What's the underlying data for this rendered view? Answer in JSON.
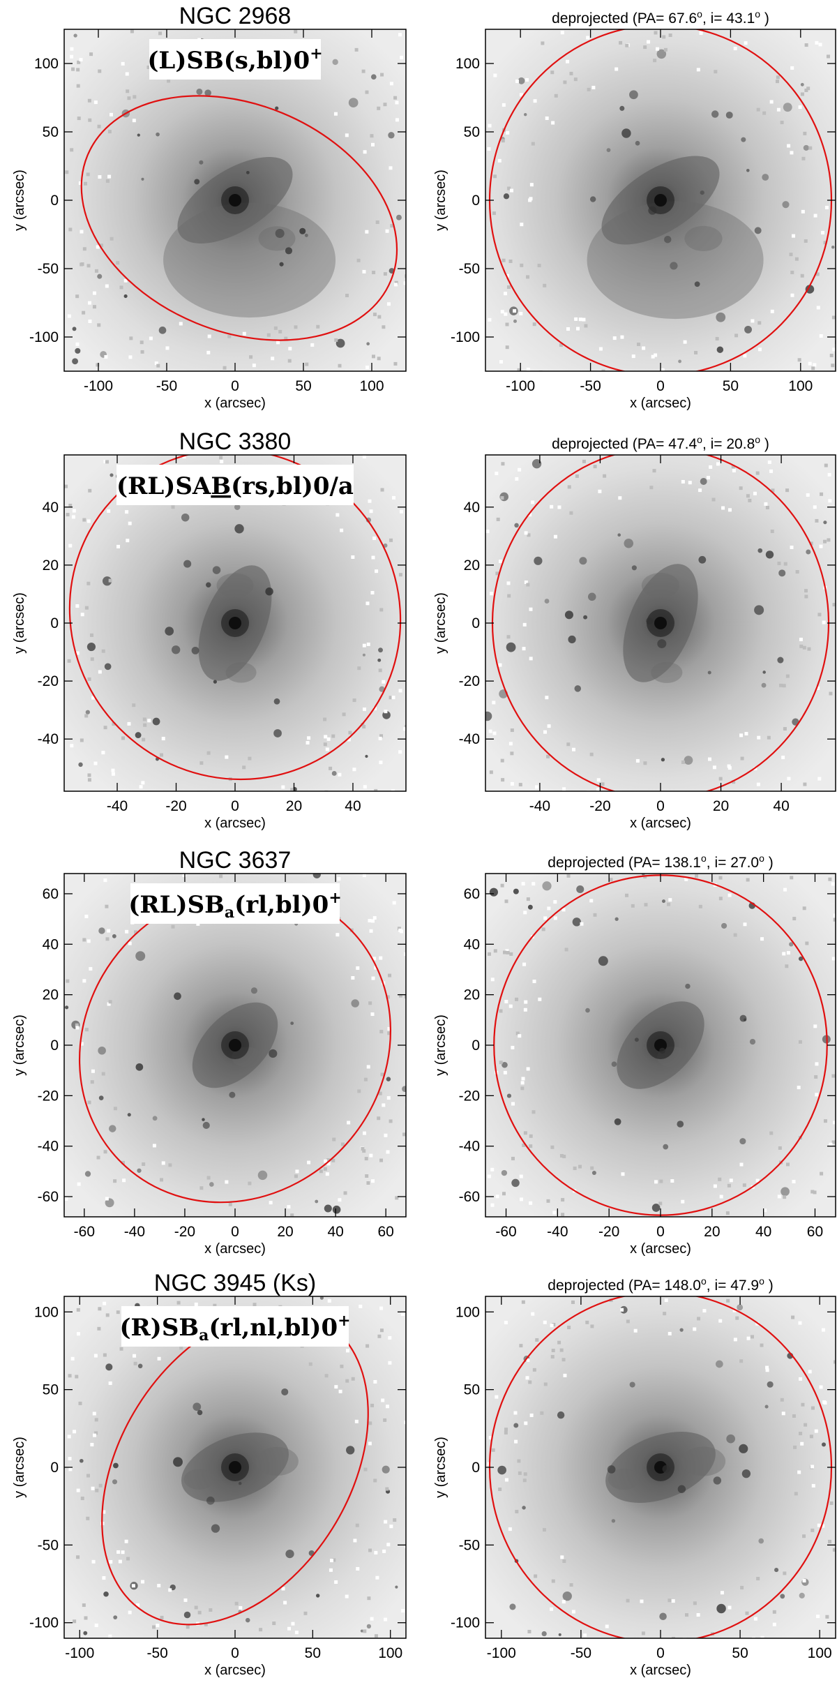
{
  "panels": [
    {
      "title": "NGC 2968",
      "classification": {
        "main": "(L)SB(s,bl)0",
        "sup": "+"
      },
      "xlabel": "x (arcsec)",
      "ylabel": "y (arcsec)",
      "xlim": [
        -125,
        125
      ],
      "ylim": [
        -125,
        125
      ],
      "xticks": [
        "-100",
        "-50",
        "0",
        "50",
        "100"
      ],
      "yticks": [
        "-100",
        "-50",
        "0",
        "50",
        "100"
      ],
      "ellipse": {
        "cx": 3,
        "cy": -13,
        "a": 120,
        "b": 83,
        "pa_deg": 67.6,
        "color": "#e01010"
      }
    },
    {
      "title": "deprojected",
      "annotation": {
        "prefix": "(PA= ",
        "pa": "67.6",
        "sep": ", i= ",
        "inc": "43.1",
        "suffix": " )",
        "deg": "o"
      },
      "xlabel": "x (arcsec)",
      "ylabel": "y (arcsec)",
      "xlim": [
        -125,
        125
      ],
      "ylim": [
        -125,
        125
      ],
      "xticks": [
        "-100",
        "-50",
        "0",
        "50",
        "100"
      ],
      "yticks": [
        "-100",
        "-50",
        "0",
        "50",
        "100"
      ],
      "ellipse": {
        "cx": 0,
        "cy": 0,
        "a": 125,
        "b": 125,
        "pa_deg": 0,
        "color": "#e01010"
      }
    },
    {
      "title": "NGC 3380",
      "classification": {
        "pre": "(RL)SA",
        "underline": "B",
        "post": "(rs,bl)0/a"
      },
      "xlabel": "x (arcsec)",
      "ylabel": "y (arcsec)",
      "xlim": [
        -58,
        58
      ],
      "ylim": [
        -58,
        58
      ],
      "xticks": [
        "-40",
        "-20",
        "0",
        "20",
        "40"
      ],
      "yticks": [
        "-40",
        "-20",
        "0",
        "20",
        "40"
      ],
      "ellipse": {
        "cx": 0,
        "cy": 3,
        "a": 57,
        "b": 56,
        "pa_deg": 47.4,
        "color": "#e01010"
      }
    },
    {
      "title": "deprojected",
      "annotation": {
        "prefix": "(PA= ",
        "pa": "47.4",
        "sep": ", i= ",
        "inc": "20.8",
        "suffix": " )",
        "deg": "o"
      },
      "xlabel": "x (arcsec)",
      "ylabel": "y (arcsec)",
      "xlim": [
        -58,
        58
      ],
      "ylim": [
        -58,
        58
      ],
      "xticks": [
        "-40",
        "-20",
        "0",
        "20",
        "40"
      ],
      "yticks": [
        "-40",
        "-20",
        "0",
        "20",
        "40"
      ],
      "ellipse": {
        "cx": 0,
        "cy": 0,
        "a": 58,
        "b": 58,
        "pa_deg": 0,
        "color": "#e01010"
      }
    },
    {
      "title": "NGC 3637",
      "classification": {
        "pre": "(RL)SB",
        "sub": "a",
        "post": "(rl,bl)0",
        "sup": "+"
      },
      "xlabel": "x (arcsec)",
      "ylabel": "y (arcsec)",
      "xlim": [
        -68,
        68
      ],
      "ylim": [
        -68,
        68
      ],
      "xticks": [
        "-60",
        "-40",
        "-20",
        "0",
        "20",
        "40",
        "60"
      ],
      "yticks": [
        "-60",
        "-40",
        "-20",
        "0",
        "20",
        "40",
        "60"
      ],
      "ellipse": {
        "cx": 0,
        "cy": 0,
        "a": 65,
        "b": 59,
        "pa_deg": 138.1,
        "color": "#e01010"
      }
    },
    {
      "title": "deprojected",
      "annotation": {
        "prefix": "(PA= ",
        "pa": "138.1",
        "sep": ", i= ",
        "inc": "27.0",
        "suffix": " )",
        "deg": "o"
      },
      "xlabel": "x (arcsec)",
      "ylabel": "y (arcsec)",
      "xlim": [
        -68,
        68
      ],
      "ylim": [
        -68,
        68
      ],
      "xticks": [
        "-60",
        "-40",
        "-20",
        "0",
        "20",
        "40",
        "60"
      ],
      "yticks": [
        "-60",
        "-40",
        "-20",
        "0",
        "20",
        "40",
        "60"
      ],
      "ellipse": {
        "cx": 0,
        "cy": 0,
        "a": 66,
        "b": 66,
        "pa_deg": 0,
        "color": "#e01010"
      }
    },
    {
      "title": "NGC 3945   (Ks)",
      "classification": {
        "pre": "(R)SB",
        "sub": "a",
        "post": "(rl,nl,bl)0",
        "sup": "+"
      },
      "xlabel": "x (arcsec)",
      "ylabel": "y (arcsec)",
      "xlim": [
        -110,
        110
      ],
      "ylim": [
        -110,
        110
      ],
      "xticks": [
        "-100",
        "-50",
        "0",
        "50",
        "100"
      ],
      "yticks": [
        "-100",
        "-50",
        "0",
        "50",
        "100"
      ],
      "ellipse": {
        "cx": 0,
        "cy": 0,
        "a": 110,
        "b": 74,
        "pa_deg": 148.0,
        "color": "#e01010"
      }
    },
    {
      "title": "deprojected",
      "annotation": {
        "prefix": "(PA= ",
        "pa": "148.0",
        "sep": ", i= ",
        "inc": "47.9",
        "suffix": " )",
        "deg": "o"
      },
      "xlabel": "x (arcsec)",
      "ylabel": "y (arcsec)",
      "xlim": [
        -110,
        110
      ],
      "ylim": [
        -110,
        110
      ],
      "xticks": [
        "-100",
        "-50",
        "0",
        "50",
        "100"
      ],
      "yticks": [
        "-100",
        "-50",
        "0",
        "50",
        "100"
      ],
      "ellipse": {
        "cx": 0,
        "cy": 0,
        "a": 110,
        "b": 110,
        "pa_deg": 0,
        "color": "#e01010"
      }
    }
  ]
}
